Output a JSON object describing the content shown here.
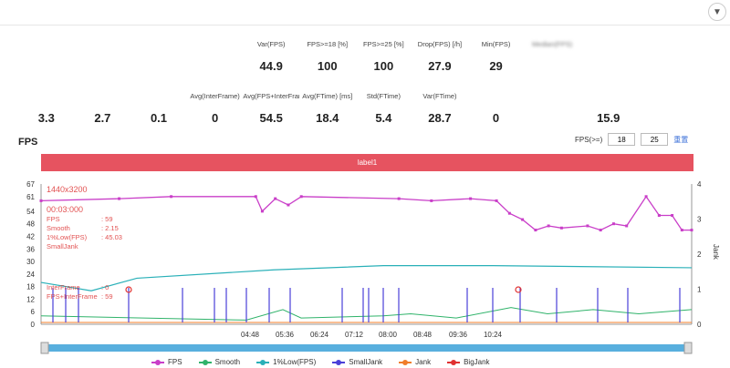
{
  "header": {
    "dropdown_icon": "chevron-down-icon"
  },
  "metrics_row1": [
    {
      "label": "",
      "value": "",
      "blur": true
    },
    {
      "label": "",
      "value": "",
      "blur": true
    },
    {
      "label": "",
      "value": "",
      "blur": true
    },
    {
      "label": "",
      "value": "",
      "blur": true
    },
    {
      "label": "Var(FPS)",
      "value": "44.9",
      "blur": false
    },
    {
      "label": "FPS>=18 [%]",
      "value": "100",
      "blur": false
    },
    {
      "label": "FPS>=25 [%]",
      "value": "100",
      "blur": false
    },
    {
      "label": "Drop(FPS) [/h]",
      "value": "27.9",
      "blur": false
    },
    {
      "label": "Min(FPS)",
      "value": "29",
      "blur": false
    },
    {
      "label": "Median(FPS)",
      "value": "",
      "blur": true
    },
    {
      "label": "",
      "value": "",
      "blur": true
    },
    {
      "label": "",
      "value": "",
      "blur": true
    }
  ],
  "metrics_row2": [
    {
      "label": "",
      "value": "3.3",
      "blur": false
    },
    {
      "label": "",
      "value": "2.7",
      "blur": false
    },
    {
      "label": "",
      "value": "0.1",
      "blur": false
    },
    {
      "label": "Avg(InterFrame)",
      "value": "0",
      "blur": false
    },
    {
      "label": "Avg(FPS+InterFrame)",
      "value": "54.5",
      "blur": false
    },
    {
      "label": "Avg(FTime) [ms]",
      "value": "18.4",
      "blur": false
    },
    {
      "label": "Std(FTime)",
      "value": "5.4",
      "blur": false
    },
    {
      "label": "Var(FTime)",
      "value": "28.7",
      "blur": false
    },
    {
      "label": "",
      "value": "0",
      "blur": false
    },
    {
      "label": "",
      "value": "",
      "blur": false
    },
    {
      "label": "",
      "value": "15.9",
      "blur": false
    },
    {
      "label": "",
      "value": "",
      "blur": false
    }
  ],
  "section": {
    "title": "FPS"
  },
  "fps_threshold": {
    "label": "FPS(>=)",
    "low": "18",
    "high": "25",
    "reset_label": "重置"
  },
  "banner": {
    "label": "label1"
  },
  "tooltip": {
    "resolution": "1440x3200",
    "time": "00:03:000",
    "rows": [
      {
        "k": "FPS",
        "v": ": 59"
      },
      {
        "k": "Smooth",
        "v": ": 2.15"
      },
      {
        "k": "1%Low(FPS)",
        "v": ": 45.03"
      },
      {
        "k": "SmallJank",
        "v": ""
      }
    ],
    "rows2": [
      {
        "k": "InterFrame",
        "v": ": 0"
      },
      {
        "k": "FPS+InterFrame",
        "v": ": 59"
      }
    ]
  },
  "chart_data": {
    "type": "line",
    "y_left_ticks": [
      "0",
      "6",
      "12",
      "18",
      "24",
      "30",
      "36",
      "42",
      "48",
      "54",
      "61",
      "67"
    ],
    "y_right_ticks": [
      "0",
      "1",
      "2",
      "3",
      "4"
    ],
    "y_right_label": "Jank",
    "x_ticks": [
      "04:48",
      "05:36",
      "06:24",
      "07:12",
      "08:00",
      "08:48",
      "09:36",
      "10:24"
    ],
    "colors": {
      "fps": "#c93ec8",
      "smooth": "#2fb36a",
      "low": "#29b0b8",
      "smalljank": "#4a3fd8",
      "jank": "#f07d2a",
      "bigjank": "#e03030"
    },
    "series": [
      {
        "name": "FPS"
      },
      {
        "name": "Smooth"
      },
      {
        "name": "1%Low(FPS)"
      },
      {
        "name": "SmallJank"
      },
      {
        "name": "Jank"
      },
      {
        "name": "BigJank"
      }
    ],
    "fps_line_approx": [
      [
        0,
        59
      ],
      [
        0.12,
        60
      ],
      [
        0.2,
        61
      ],
      [
        0.33,
        61
      ],
      [
        0.34,
        54
      ],
      [
        0.36,
        60
      ],
      [
        0.38,
        57
      ],
      [
        0.4,
        61
      ],
      [
        0.55,
        60
      ],
      [
        0.6,
        59
      ],
      [
        0.66,
        60
      ],
      [
        0.7,
        59
      ],
      [
        0.72,
        53
      ],
      [
        0.74,
        50
      ],
      [
        0.76,
        45
      ],
      [
        0.78,
        47
      ],
      [
        0.8,
        46
      ],
      [
        0.84,
        47
      ],
      [
        0.86,
        45
      ],
      [
        0.88,
        48
      ],
      [
        0.9,
        47
      ],
      [
        0.93,
        61
      ],
      [
        0.95,
        52
      ],
      [
        0.97,
        52
      ],
      [
        0.985,
        45
      ],
      [
        1,
        45
      ]
    ]
  },
  "legend": [
    {
      "label": "FPS",
      "color": "#c93ec8"
    },
    {
      "label": "Smooth",
      "color": "#2fb36a"
    },
    {
      "label": "1%Low(FPS)",
      "color": "#29b0b8"
    },
    {
      "label": "SmallJank",
      "color": "#4a3fd8"
    },
    {
      "label": "Jank",
      "color": "#f07d2a"
    },
    {
      "label": "BigJank",
      "color": "#e03030"
    }
  ]
}
